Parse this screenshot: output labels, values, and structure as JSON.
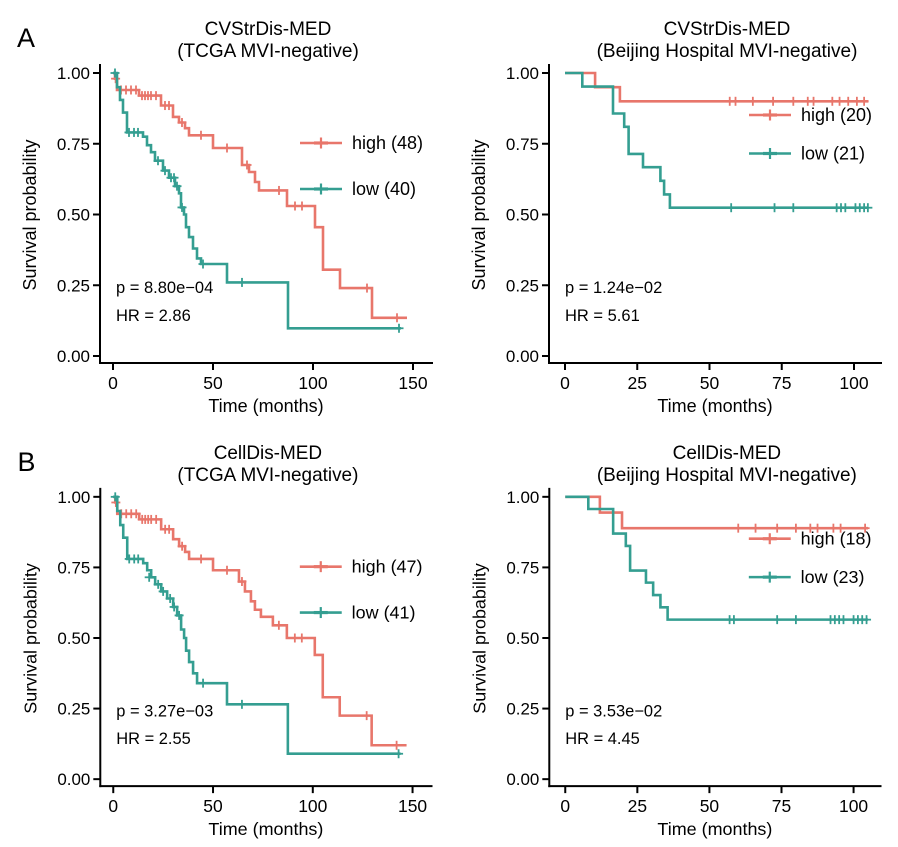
{
  "figure": {
    "panel_letters": [
      "A",
      "B"
    ],
    "background": "#ffffff",
    "colors": {
      "high": "#E8766B",
      "low": "#349E91",
      "axis": "#000000"
    }
  },
  "chart_data": [
    {
      "id": "a-left",
      "type": "line",
      "subtype": "kaplan_meier_step",
      "panel_letter": "A",
      "title": "CVStrDis-MED",
      "subtitle": "(TCGA MVI-negative)",
      "xlabel": "Time (months)",
      "ylabel": "Survival probability",
      "x_ticks": [
        0,
        50,
        100,
        150
      ],
      "y_ticks": [
        1.0,
        0.75,
        0.5,
        0.25,
        0.0
      ],
      "y_tick_labels": [
        "1.00",
        "0.75",
        "0.50",
        "0.25",
        "0.00"
      ],
      "xlim": [
        0,
        152
      ],
      "ylim": [
        0,
        1
      ],
      "grid": false,
      "legend_position": "right-center",
      "p_text": "p =  8.80e−04",
      "hr_text": "HR =  2.86",
      "series": [
        {
          "name": "high (48)",
          "color": "#E8766B",
          "steps": [
            [
              0,
              1.0
            ],
            [
              1,
              0.98
            ],
            [
              2,
              0.94
            ],
            [
              13,
              0.92
            ],
            [
              24,
              0.885
            ],
            [
              30,
              0.845
            ],
            [
              33,
              0.825
            ],
            [
              36,
              0.805
            ],
            [
              38,
              0.78
            ],
            [
              50,
              0.735
            ],
            [
              64.5,
              0.675
            ],
            [
              68,
              0.65
            ],
            [
              71,
              0.615
            ],
            [
              73,
              0.585
            ],
            [
              87,
              0.53
            ],
            [
              101,
              0.455
            ],
            [
              105,
              0.305
            ],
            [
              113.5,
              0.24
            ],
            [
              129.5,
              0.135
            ],
            [
              147,
              0.135
            ]
          ],
          "censors": [
            [
              1.3,
              0.98
            ],
            [
              4,
              0.94
            ],
            [
              6.5,
              0.94
            ],
            [
              9,
              0.94
            ],
            [
              11.5,
              0.94
            ],
            [
              14.5,
              0.92
            ],
            [
              16,
              0.92
            ],
            [
              17.5,
              0.92
            ],
            [
              19,
              0.92
            ],
            [
              21.5,
              0.92
            ],
            [
              26,
              0.885
            ],
            [
              28,
              0.885
            ],
            [
              34.5,
              0.825
            ],
            [
              44,
              0.78
            ],
            [
              57,
              0.735
            ],
            [
              67,
              0.675
            ],
            [
              83,
              0.585
            ],
            [
              91,
              0.53
            ],
            [
              94.5,
              0.53
            ],
            [
              127,
              0.24
            ],
            [
              142,
              0.135
            ]
          ]
        },
        {
          "name": "low (40)",
          "color": "#349E91",
          "steps": [
            [
              0,
              1.0
            ],
            [
              2,
              0.95
            ],
            [
              3.5,
              0.905
            ],
            [
              5,
              0.86
            ],
            [
              7,
              0.79
            ],
            [
              15,
              0.775
            ],
            [
              17,
              0.745
            ],
            [
              19,
              0.72
            ],
            [
              21,
              0.69
            ],
            [
              25,
              0.655
            ],
            [
              28,
              0.63
            ],
            [
              31,
              0.6
            ],
            [
              33,
              0.575
            ],
            [
              34,
              0.525
            ],
            [
              35.5,
              0.5
            ],
            [
              36.5,
              0.455
            ],
            [
              38,
              0.42
            ],
            [
              40,
              0.38
            ],
            [
              42,
              0.345
            ],
            [
              44,
              0.325
            ],
            [
              57,
              0.26
            ],
            [
              87.5,
              0.098
            ],
            [
              144,
              0.098
            ]
          ],
          "censors": [
            [
              1,
              1.0
            ],
            [
              8,
              0.79
            ],
            [
              10.5,
              0.79
            ],
            [
              12.5,
              0.79
            ],
            [
              22.5,
              0.69
            ],
            [
              26,
              0.655
            ],
            [
              29,
              0.63
            ],
            [
              30.5,
              0.63
            ],
            [
              32,
              0.6
            ],
            [
              34.5,
              0.525
            ],
            [
              45,
              0.325
            ],
            [
              64.5,
              0.26
            ],
            [
              143,
              0.098
            ]
          ]
        }
      ]
    },
    {
      "id": "a-right",
      "type": "line",
      "subtype": "kaplan_meier_step",
      "panel_letter": "",
      "title": "CVStrDis-MED",
      "subtitle": "(Beijing Hospital MVI-negative)",
      "xlabel": "Time (months)",
      "ylabel": "Survival probability",
      "x_ticks": [
        0,
        25,
        50,
        75,
        100
      ],
      "y_ticks": [
        1.0,
        0.75,
        0.5,
        0.25,
        0.0
      ],
      "y_tick_labels": [
        "1.00",
        "0.75",
        "0.50",
        "0.25",
        "0.00"
      ],
      "xlim": [
        0,
        105
      ],
      "ylim": [
        0,
        1
      ],
      "grid": false,
      "legend_position": "right-upper",
      "p_text": "p = 1.24e−02",
      "hr_text": "HR =  5.61",
      "series": [
        {
          "name": "high (20)",
          "color": "#E8766B",
          "steps": [
            [
              0,
              1.0
            ],
            [
              10.4,
              0.95
            ],
            [
              19,
              0.9
            ],
            [
              105,
              0.9
            ]
          ],
          "censors": [
            [
              57,
              0.9
            ],
            [
              59,
              0.9
            ],
            [
              65,
              0.9
            ],
            [
              72,
              0.9
            ],
            [
              79,
              0.9
            ],
            [
              84,
              0.9
            ],
            [
              86,
              0.9
            ],
            [
              92.5,
              0.9
            ],
            [
              95,
              0.9
            ],
            [
              98,
              0.9
            ],
            [
              101,
              0.9
            ],
            [
              103.5,
              0.9
            ]
          ]
        },
        {
          "name": "low (21)",
          "color": "#349E91",
          "steps": [
            [
              0,
              1.0
            ],
            [
              6,
              0.952
            ],
            [
              16.6,
              0.857
            ],
            [
              20.5,
              0.81
            ],
            [
              22,
              0.714
            ],
            [
              27,
              0.667
            ],
            [
              33,
              0.619
            ],
            [
              34.3,
              0.571
            ],
            [
              36.3,
              0.524
            ],
            [
              105,
              0.524
            ]
          ],
          "censors": [
            [
              57.5,
              0.524
            ],
            [
              72.5,
              0.524
            ],
            [
              79,
              0.524
            ],
            [
              94,
              0.524
            ],
            [
              95.5,
              0.524
            ],
            [
              97,
              0.524
            ],
            [
              100.5,
              0.524
            ],
            [
              102,
              0.524
            ],
            [
              103.5,
              0.524
            ],
            [
              104.8,
              0.524
            ]
          ]
        }
      ]
    },
    {
      "id": "b-left",
      "type": "line",
      "subtype": "kaplan_meier_step",
      "panel_letter": "B",
      "title": "CellDis-MED",
      "subtitle": "(TCGA MVI-negative)",
      "xlabel": "Time (months)",
      "ylabel": "Survival probability",
      "x_ticks": [
        0,
        50,
        100,
        150
      ],
      "y_ticks": [
        1.0,
        0.75,
        0.5,
        0.25,
        0.0
      ],
      "y_tick_labels": [
        "1.00",
        "0.75",
        "0.50",
        "0.25",
        "0.00"
      ],
      "xlim": [
        0,
        152
      ],
      "ylim": [
        0,
        1
      ],
      "grid": false,
      "legend_position": "right-center",
      "p_text": "p =  3.27e−03",
      "hr_text": "HR =  2.55",
      "series": [
        {
          "name": "high (47)",
          "color": "#E8766B",
          "steps": [
            [
              0,
              1.0
            ],
            [
              1,
              0.98
            ],
            [
              2,
              0.94
            ],
            [
              13,
              0.92
            ],
            [
              24,
              0.885
            ],
            [
              30,
              0.85
            ],
            [
              33,
              0.825
            ],
            [
              36,
              0.805
            ],
            [
              38,
              0.78
            ],
            [
              50,
              0.74
            ],
            [
              63,
              0.7
            ],
            [
              66,
              0.665
            ],
            [
              69,
              0.63
            ],
            [
              71,
              0.6
            ],
            [
              74,
              0.575
            ],
            [
              80,
              0.545
            ],
            [
              87,
              0.5
            ],
            [
              101,
              0.44
            ],
            [
              105,
              0.29
            ],
            [
              113.5,
              0.225
            ],
            [
              129.5,
              0.12
            ],
            [
              147,
              0.12
            ]
          ],
          "censors": [
            [
              1.3,
              0.98
            ],
            [
              4,
              0.94
            ],
            [
              6.5,
              0.94
            ],
            [
              9,
              0.94
            ],
            [
              11.5,
              0.94
            ],
            [
              14.5,
              0.92
            ],
            [
              16,
              0.92
            ],
            [
              17.5,
              0.92
            ],
            [
              19,
              0.92
            ],
            [
              21.5,
              0.92
            ],
            [
              26,
              0.885
            ],
            [
              28,
              0.885
            ],
            [
              34.5,
              0.825
            ],
            [
              44,
              0.78
            ],
            [
              57,
              0.74
            ],
            [
              64.5,
              0.7
            ],
            [
              83,
              0.545
            ],
            [
              91,
              0.5
            ],
            [
              94.5,
              0.5
            ],
            [
              127,
              0.225
            ],
            [
              142,
              0.12
            ]
          ]
        },
        {
          "name": "low (41)",
          "color": "#349E91",
          "steps": [
            [
              0,
              1.0
            ],
            [
              2,
              0.95
            ],
            [
              3.5,
              0.9
            ],
            [
              5,
              0.855
            ],
            [
              7,
              0.78
            ],
            [
              15,
              0.765
            ],
            [
              17,
              0.74
            ],
            [
              19,
              0.715
            ],
            [
              21,
              0.69
            ],
            [
              24,
              0.665
            ],
            [
              27,
              0.64
            ],
            [
              30,
              0.61
            ],
            [
              32,
              0.58
            ],
            [
              34,
              0.53
            ],
            [
              35.5,
              0.5
            ],
            [
              36.5,
              0.455
            ],
            [
              38,
              0.415
            ],
            [
              40,
              0.375
            ],
            [
              42,
              0.34
            ],
            [
              57,
              0.265
            ],
            [
              87.5,
              0.09
            ],
            [
              144,
              0.09
            ]
          ],
          "censors": [
            [
              1,
              1.0
            ],
            [
              8,
              0.78
            ],
            [
              10.5,
              0.78
            ],
            [
              12.5,
              0.78
            ],
            [
              18,
              0.715
            ],
            [
              22.5,
              0.69
            ],
            [
              25,
              0.665
            ],
            [
              28.5,
              0.64
            ],
            [
              30.5,
              0.61
            ],
            [
              33,
              0.58
            ],
            [
              45,
              0.34
            ],
            [
              64.5,
              0.265
            ],
            [
              143,
              0.09
            ]
          ]
        }
      ]
    },
    {
      "id": "b-right",
      "type": "line",
      "subtype": "kaplan_meier_step",
      "panel_letter": "",
      "title": "CellDis-MED",
      "subtitle": "(Beijing Hospital MVI-negative)",
      "xlabel": "Time (months)",
      "ylabel": "Survival probability",
      "x_ticks": [
        0,
        25,
        50,
        75,
        100
      ],
      "y_ticks": [
        1.0,
        0.75,
        0.5,
        0.25,
        0.0
      ],
      "y_tick_labels": [
        "1.00",
        "0.75",
        "0.50",
        "0.25",
        "0.00"
      ],
      "xlim": [
        0,
        105
      ],
      "ylim": [
        0,
        1
      ],
      "grid": false,
      "legend_position": "right-upper",
      "p_text": "p =  3.53e−02",
      "hr_text": "HR =  4.45",
      "series": [
        {
          "name": "high (18)",
          "color": "#E8766B",
          "steps": [
            [
              0,
              1.0
            ],
            [
              12,
              0.944
            ],
            [
              19.7,
              0.889
            ],
            [
              105,
              0.889
            ]
          ],
          "censors": [
            [
              60,
              0.889
            ],
            [
              66,
              0.889
            ],
            [
              73.5,
              0.889
            ],
            [
              80,
              0.889
            ],
            [
              85,
              0.889
            ],
            [
              87.5,
              0.889
            ],
            [
              93,
              0.889
            ],
            [
              95.5,
              0.889
            ],
            [
              104,
              0.889
            ]
          ]
        },
        {
          "name": "low (23)",
          "color": "#349E91",
          "steps": [
            [
              0,
              1.0
            ],
            [
              8,
              0.957
            ],
            [
              16.6,
              0.87
            ],
            [
              21,
              0.826
            ],
            [
              22.5,
              0.739
            ],
            [
              28,
              0.696
            ],
            [
              30.5,
              0.652
            ],
            [
              33,
              0.609
            ],
            [
              35.5,
              0.565
            ],
            [
              105,
              0.565
            ]
          ],
          "censors": [
            [
              57,
              0.565
            ],
            [
              58.5,
              0.565
            ],
            [
              73.5,
              0.565
            ],
            [
              80,
              0.565
            ],
            [
              92,
              0.565
            ],
            [
              93.5,
              0.565
            ],
            [
              95,
              0.565
            ],
            [
              96.5,
              0.565
            ],
            [
              100,
              0.565
            ],
            [
              101.5,
              0.565
            ],
            [
              103,
              0.565
            ],
            [
              104.5,
              0.565
            ]
          ]
        }
      ]
    }
  ]
}
